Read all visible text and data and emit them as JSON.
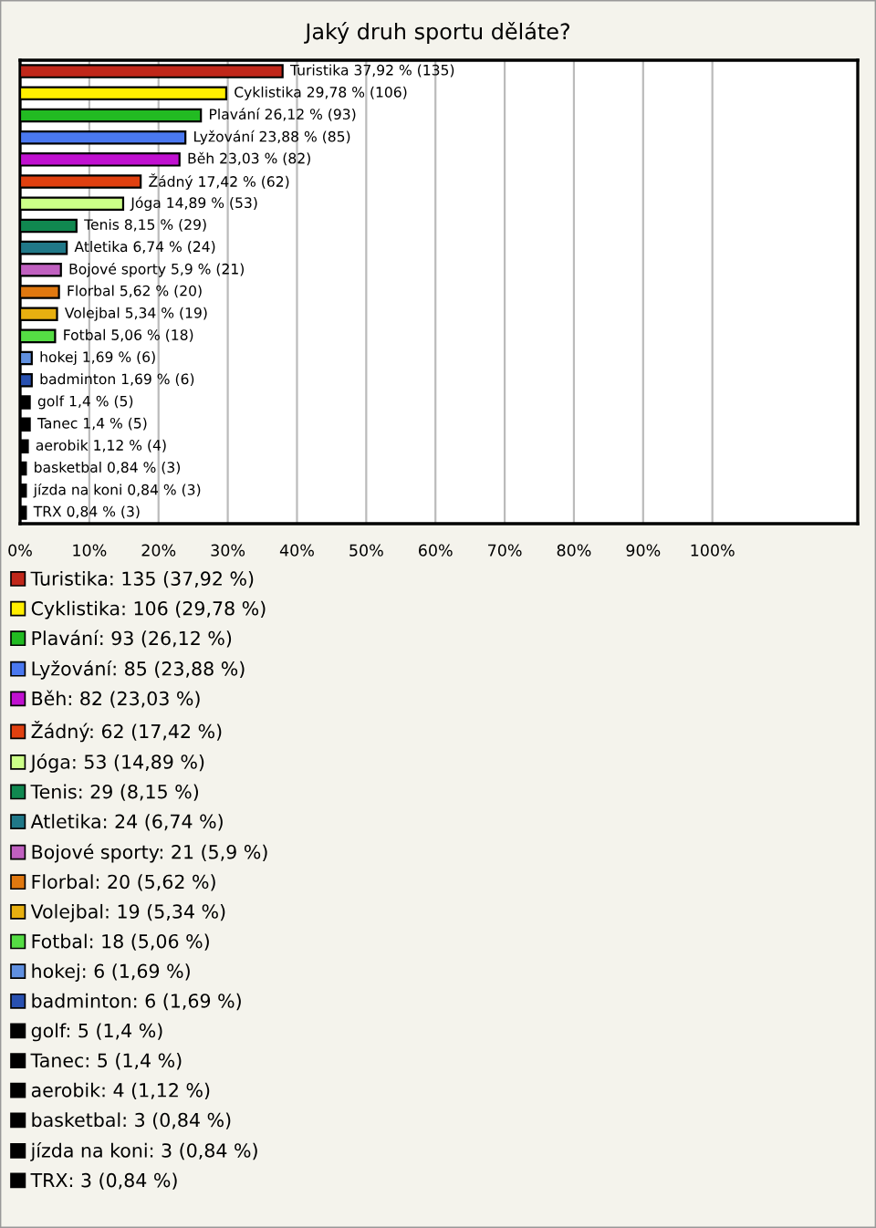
{
  "chart_data": {
    "type": "bar",
    "orientation": "horizontal",
    "title": "Jaký druh sportu děláte?",
    "categories": [
      "Turistika",
      "Cyklistika",
      "Plavání",
      "Lyžování",
      "Běh",
      "Žádný",
      "Jóga",
      "Tenis",
      "Atletika",
      "Bojové sporty",
      "Florbal",
      "Volejbal",
      "Fotbal",
      "hokej",
      "badminton",
      "golf",
      "Tanec",
      "aerobik",
      "basketbal",
      "jízda na koni",
      "TRX"
    ],
    "series": [
      {
        "name": "Turistika: 135 (37,92 %)",
        "color": "#c0271a",
        "values": [
          37.92,
          null,
          null,
          null,
          null,
          null,
          null,
          null,
          null,
          null,
          null,
          null,
          null,
          null,
          null,
          null,
          null,
          null,
          null,
          null,
          null
        ]
      },
      {
        "name": "Cyklistika: 106 (29,78 %)",
        "color": "#ffee00",
        "values": [
          null,
          29.78,
          null,
          null,
          null,
          null,
          null,
          null,
          null,
          null,
          null,
          null,
          null,
          null,
          null,
          null,
          null,
          null,
          null,
          null,
          null
        ]
      },
      {
        "name": "Plavání: 93 (26,12 %)",
        "color": "#22bb22",
        "values": [
          null,
          null,
          26.12,
          null,
          null,
          null,
          null,
          null,
          null,
          null,
          null,
          null,
          null,
          null,
          null,
          null,
          null,
          null,
          null,
          null,
          null
        ]
      },
      {
        "name": "Lyžování: 85 (23,88 %)",
        "color": "#4a78f0",
        "values": [
          null,
          null,
          null,
          23.88,
          null,
          null,
          null,
          null,
          null,
          null,
          null,
          null,
          null,
          null,
          null,
          null,
          null,
          null,
          null,
          null,
          null
        ]
      },
      {
        "name": "Běh: 82 (23,03 %)",
        "color": "#c010d0",
        "values": [
          null,
          null,
          null,
          null,
          23.03,
          null,
          null,
          null,
          null,
          null,
          null,
          null,
          null,
          null,
          null,
          null,
          null,
          null,
          null,
          null,
          null
        ]
      },
      {
        "name": "Žádný: 62 (17,42 %)",
        "color": "#e04010",
        "values": [
          null,
          null,
          null,
          null,
          null,
          17.42,
          null,
          null,
          null,
          null,
          null,
          null,
          null,
          null,
          null,
          null,
          null,
          null,
          null,
          null,
          null
        ]
      },
      {
        "name": "Jóga: 53 (14,89 %)",
        "color": "#ccff88",
        "values": [
          null,
          null,
          null,
          null,
          null,
          null,
          14.89,
          null,
          null,
          null,
          null,
          null,
          null,
          null,
          null,
          null,
          null,
          null,
          null,
          null,
          null
        ]
      },
      {
        "name": "Tenis: 29 (8,15 %)",
        "color": "#108850",
        "values": [
          null,
          null,
          null,
          null,
          null,
          null,
          null,
          8.15,
          null,
          null,
          null,
          null,
          null,
          null,
          null,
          null,
          null,
          null,
          null,
          null,
          null
        ]
      },
      {
        "name": "Atletika: 24 (6,74 %)",
        "color": "#207888",
        "values": [
          null,
          null,
          null,
          null,
          null,
          null,
          null,
          null,
          6.74,
          null,
          null,
          null,
          null,
          null,
          null,
          null,
          null,
          null,
          null,
          null,
          null
        ]
      },
      {
        "name": "Bojové sporty: 21 (5,9 %)",
        "color": "#c060c0",
        "values": [
          null,
          null,
          null,
          null,
          null,
          null,
          null,
          null,
          null,
          5.9,
          null,
          null,
          null,
          null,
          null,
          null,
          null,
          null,
          null,
          null,
          null
        ]
      },
      {
        "name": "Florbal: 20 (5,62 %)",
        "color": "#e07810",
        "values": [
          null,
          null,
          null,
          null,
          null,
          null,
          null,
          null,
          null,
          null,
          5.62,
          null,
          null,
          null,
          null,
          null,
          null,
          null,
          null,
          null,
          null
        ]
      },
      {
        "name": "Volejbal: 19 (5,34 %)",
        "color": "#e8b010",
        "values": [
          null,
          null,
          null,
          null,
          null,
          null,
          null,
          null,
          null,
          null,
          null,
          5.34,
          null,
          null,
          null,
          null,
          null,
          null,
          null,
          null,
          null
        ]
      },
      {
        "name": "Fotbal: 18 (5,06 %)",
        "color": "#55dd44",
        "values": [
          null,
          null,
          null,
          null,
          null,
          null,
          null,
          null,
          null,
          null,
          null,
          null,
          5.06,
          null,
          null,
          null,
          null,
          null,
          null,
          null,
          null
        ]
      },
      {
        "name": "hokej: 6 (1,69 %)",
        "color": "#6090e0",
        "values": [
          null,
          null,
          null,
          null,
          null,
          null,
          null,
          null,
          null,
          null,
          null,
          null,
          null,
          1.69,
          null,
          null,
          null,
          null,
          null,
          null,
          null
        ]
      },
      {
        "name": "badminton: 6 (1,69 %)",
        "color": "#2850b0",
        "values": [
          null,
          null,
          null,
          null,
          null,
          null,
          null,
          null,
          null,
          null,
          null,
          null,
          null,
          null,
          1.69,
          null,
          null,
          null,
          null,
          null,
          null
        ]
      },
      {
        "name": "golf: 5 (1,4 %)",
        "color": "#000000",
        "values": [
          null,
          null,
          null,
          null,
          null,
          null,
          null,
          null,
          null,
          null,
          null,
          null,
          null,
          null,
          null,
          1.4,
          null,
          null,
          null,
          null,
          null
        ]
      },
      {
        "name": "Tanec: 5 (1,4 %)",
        "color": "#000000",
        "values": [
          null,
          null,
          null,
          null,
          null,
          null,
          null,
          null,
          null,
          null,
          null,
          null,
          null,
          null,
          null,
          null,
          1.4,
          null,
          null,
          null,
          null
        ]
      },
      {
        "name": "aerobik: 4 (1,12 %)",
        "color": "#000000",
        "values": [
          null,
          null,
          null,
          null,
          null,
          null,
          null,
          null,
          null,
          null,
          null,
          null,
          null,
          null,
          null,
          null,
          null,
          1.12,
          null,
          null,
          null
        ]
      },
      {
        "name": "basketbal: 3 (0,84 %)",
        "color": "#000000",
        "values": [
          null,
          null,
          null,
          null,
          null,
          null,
          null,
          null,
          null,
          null,
          null,
          null,
          null,
          null,
          null,
          null,
          null,
          null,
          0.84,
          null,
          null
        ]
      },
      {
        "name": "jízda na koni: 3 (0,84 %)",
        "color": "#000000",
        "values": [
          null,
          null,
          null,
          null,
          null,
          null,
          null,
          null,
          null,
          null,
          null,
          null,
          null,
          null,
          null,
          null,
          null,
          null,
          null,
          0.84,
          null
        ]
      },
      {
        "name": "TRX: 3 (0,84 %)",
        "color": "#000000",
        "values": [
          null,
          null,
          null,
          null,
          null,
          null,
          null,
          null,
          null,
          null,
          null,
          null,
          null,
          null,
          null,
          null,
          null,
          null,
          null,
          null,
          0.84
        ]
      }
    ],
    "value_labels": [
      "37,92 % (135)",
      "29,78 % (106)",
      "26,12 % (93)",
      "23,88 % (85)",
      "23,03 % (82)",
      "17,42 % (62)",
      "14,89 % (53)",
      "8,15 % (29)",
      "6,74 % (24)",
      "5,9 % (21)",
      "5,62 % (20)",
      "5,34 % (19)",
      "5,06 % (18)",
      "1,69 % (6)",
      "1,69 % (6)",
      "1,4 % (5)",
      "1,4 % (5)",
      "1,12 % (4)",
      "0,84 % (3)",
      "0,84 % (3)",
      "0,84 % (3)"
    ],
    "xlim": [
      0,
      121
    ],
    "xticks": [
      {
        "value": 0,
        "label": "0%"
      },
      {
        "value": 10,
        "label": "10%"
      },
      {
        "value": 20,
        "label": "20%"
      },
      {
        "value": 30,
        "label": "30%"
      },
      {
        "value": 40,
        "label": "40%"
      },
      {
        "value": 50,
        "label": "50%"
      },
      {
        "value": 60,
        "label": "60%"
      },
      {
        "value": 70,
        "label": "70%"
      },
      {
        "value": 80,
        "label": "80%"
      },
      {
        "value": 90,
        "label": "90%"
      },
      {
        "value": 100,
        "label": "100%"
      }
    ],
    "tick_labels": "x",
    "grid": "x",
    "legend": "bottom"
  }
}
